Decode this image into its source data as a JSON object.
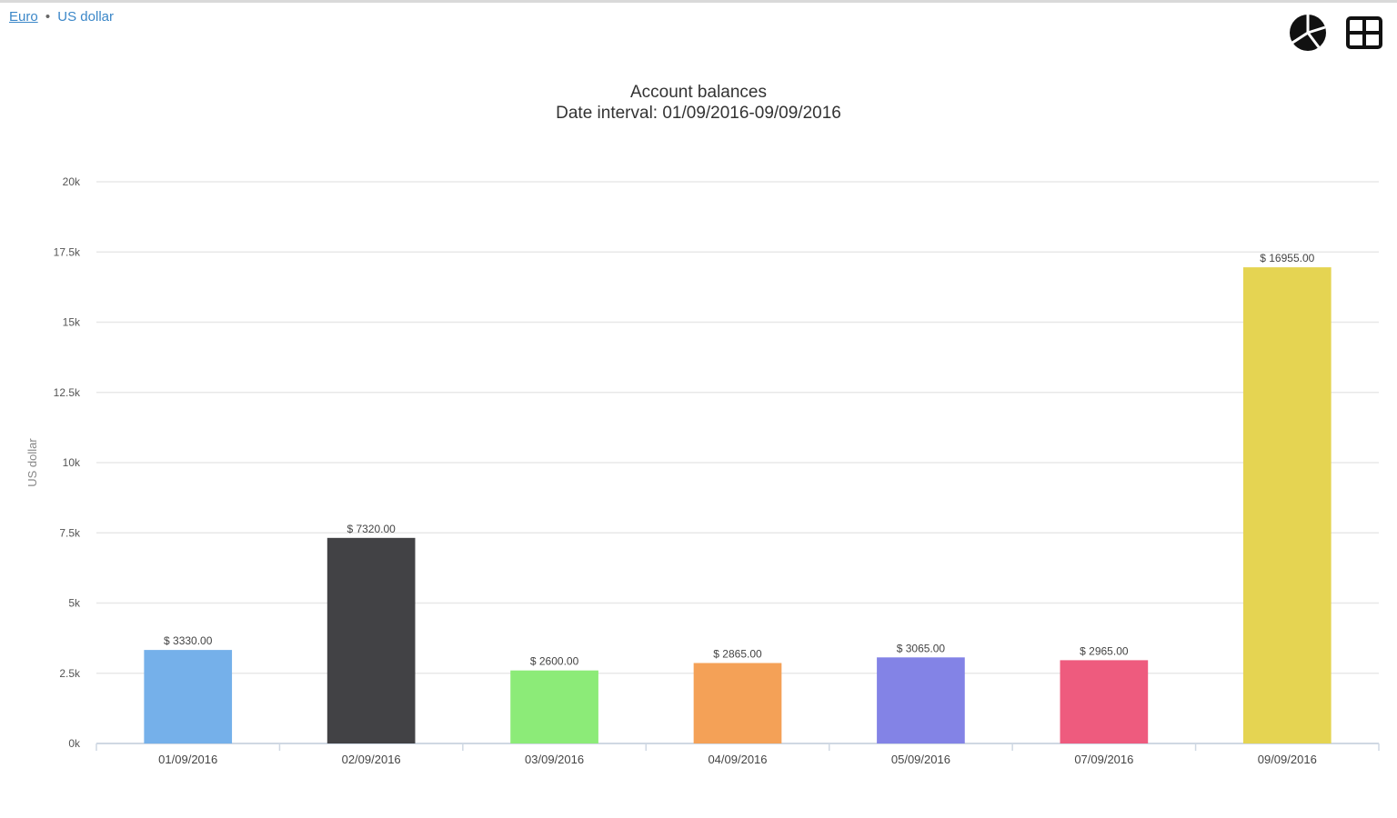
{
  "breadcrumb": {
    "link": "Euro",
    "separator": "•",
    "current": "US dollar"
  },
  "toolbar": {
    "pie_icon": "pie-chart-icon",
    "table_icon": "table-grid-icon"
  },
  "colors": {
    "bars": [
      "#75b0ea",
      "#424245",
      "#8ceb78",
      "#f4a157",
      "#8383e6",
      "#ee5b7e",
      "#e5d452"
    ],
    "grid": "#e8e8e8",
    "axis": "#cfd8e3"
  },
  "chart_data": {
    "type": "bar",
    "title": "Account balances",
    "subtitle": "Date interval: 01/09/2016-09/09/2016",
    "xlabel": "",
    "ylabel": "US dollar",
    "ylim": [
      0,
      20000
    ],
    "y_ticks": [
      0,
      2500,
      5000,
      7500,
      10000,
      12500,
      15000,
      17500,
      20000
    ],
    "y_tick_labels": [
      "0k",
      "2.5k",
      "5k",
      "7.5k",
      "10k",
      "12.5k",
      "15k",
      "17.5k",
      "20k"
    ],
    "categories": [
      "01/09/2016",
      "02/09/2016",
      "03/09/2016",
      "04/09/2016",
      "05/09/2016",
      "07/09/2016",
      "09/09/2016"
    ],
    "values": [
      3330,
      7320,
      2600,
      2865,
      3065,
      2965,
      16955
    ],
    "data_labels": [
      "$ 3330.00",
      "$ 7320.00",
      "$ 2600.00",
      "$ 2865.00",
      "$ 3065.00",
      "$ 2965.00",
      "$ 16955.00"
    ],
    "grid": true,
    "legend": "none"
  }
}
